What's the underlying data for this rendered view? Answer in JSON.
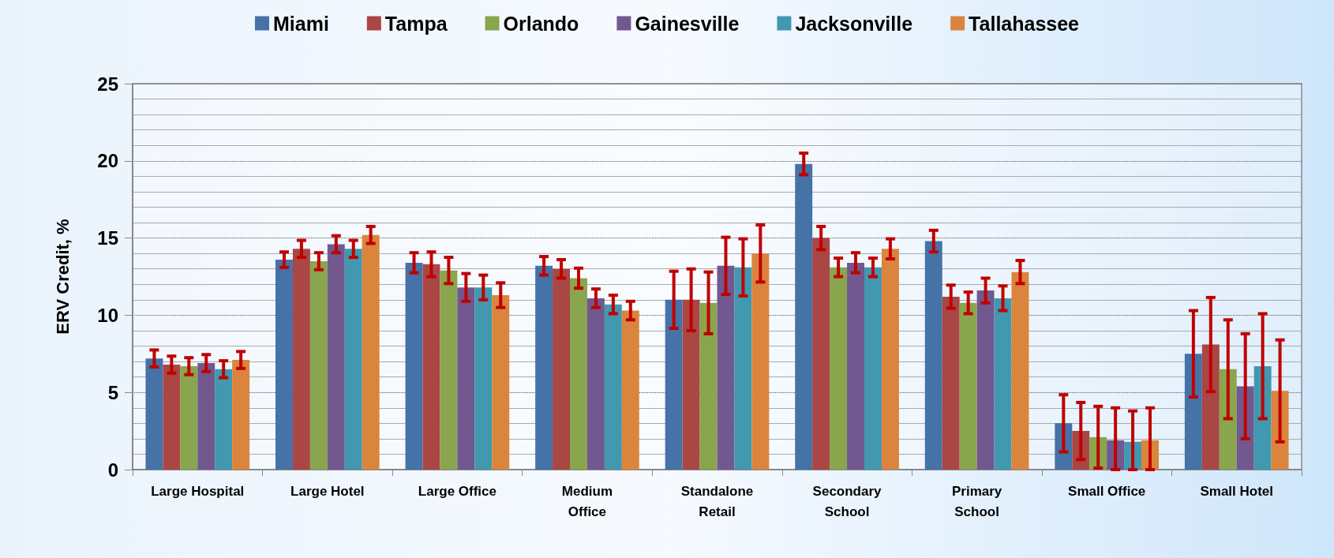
{
  "chart_data": {
    "type": "bar",
    "ylabel": "ERV Credit, %",
    "categories": [
      "Large Hospital",
      "Large Hotel",
      "Large Office",
      "Medium\nOffice",
      "Standalone\nRetail",
      "Secondary\nSchool",
      "Primary\nSchool",
      "Small Office",
      "Small Hotel"
    ],
    "series": [
      {
        "name": "Miami",
        "color": "#4572a7",
        "values": [
          7.2,
          13.6,
          13.4,
          13.2,
          11.0,
          19.8,
          14.8,
          3.0,
          7.5
        ],
        "errors": [
          0.55,
          0.5,
          0.65,
          0.6,
          1.85,
          0.7,
          0.7,
          1.85,
          2.8
        ]
      },
      {
        "name": "Tampa",
        "color": "#aa4643",
        "values": [
          6.8,
          14.3,
          13.3,
          13.0,
          11.0,
          15.0,
          11.2,
          2.5,
          8.1
        ],
        "errors": [
          0.55,
          0.55,
          0.8,
          0.6,
          2.0,
          0.75,
          0.75,
          1.85,
          3.05
        ]
      },
      {
        "name": "Orlando",
        "color": "#89a54e",
        "values": [
          6.7,
          13.5,
          12.9,
          12.4,
          10.8,
          13.1,
          10.8,
          2.1,
          6.5
        ],
        "errors": [
          0.55,
          0.55,
          0.85,
          0.65,
          2.0,
          0.6,
          0.7,
          2.0,
          3.2
        ]
      },
      {
        "name": "Gainesville",
        "color": "#71588f",
        "values": [
          6.9,
          14.6,
          11.8,
          11.1,
          13.2,
          13.4,
          11.6,
          1.9,
          5.4
        ],
        "errors": [
          0.55,
          0.55,
          0.9,
          0.6,
          1.85,
          0.65,
          0.8,
          [
            0,
            4.0
          ],
          3.4
        ]
      },
      {
        "name": "Jacksonville",
        "color": "#4198af",
        "values": [
          6.5,
          14.3,
          11.8,
          10.7,
          13.1,
          13.1,
          11.1,
          1.8,
          6.7
        ],
        "errors": [
          0.55,
          0.55,
          0.8,
          0.6,
          1.85,
          0.6,
          0.8,
          [
            0,
            3.8
          ],
          3.4
        ]
      },
      {
        "name": "Tallahassee",
        "color": "#db843d",
        "values": [
          7.1,
          15.2,
          11.3,
          10.3,
          14.0,
          14.3,
          12.8,
          1.9,
          5.1
        ],
        "errors": [
          0.55,
          0.55,
          0.8,
          0.6,
          1.85,
          0.65,
          0.75,
          [
            0,
            4.0
          ],
          3.3
        ]
      }
    ],
    "ylim": [
      0,
      25
    ],
    "yticks": [
      0,
      5,
      10,
      15,
      20,
      25
    ],
    "grid": true,
    "legend": "top"
  }
}
